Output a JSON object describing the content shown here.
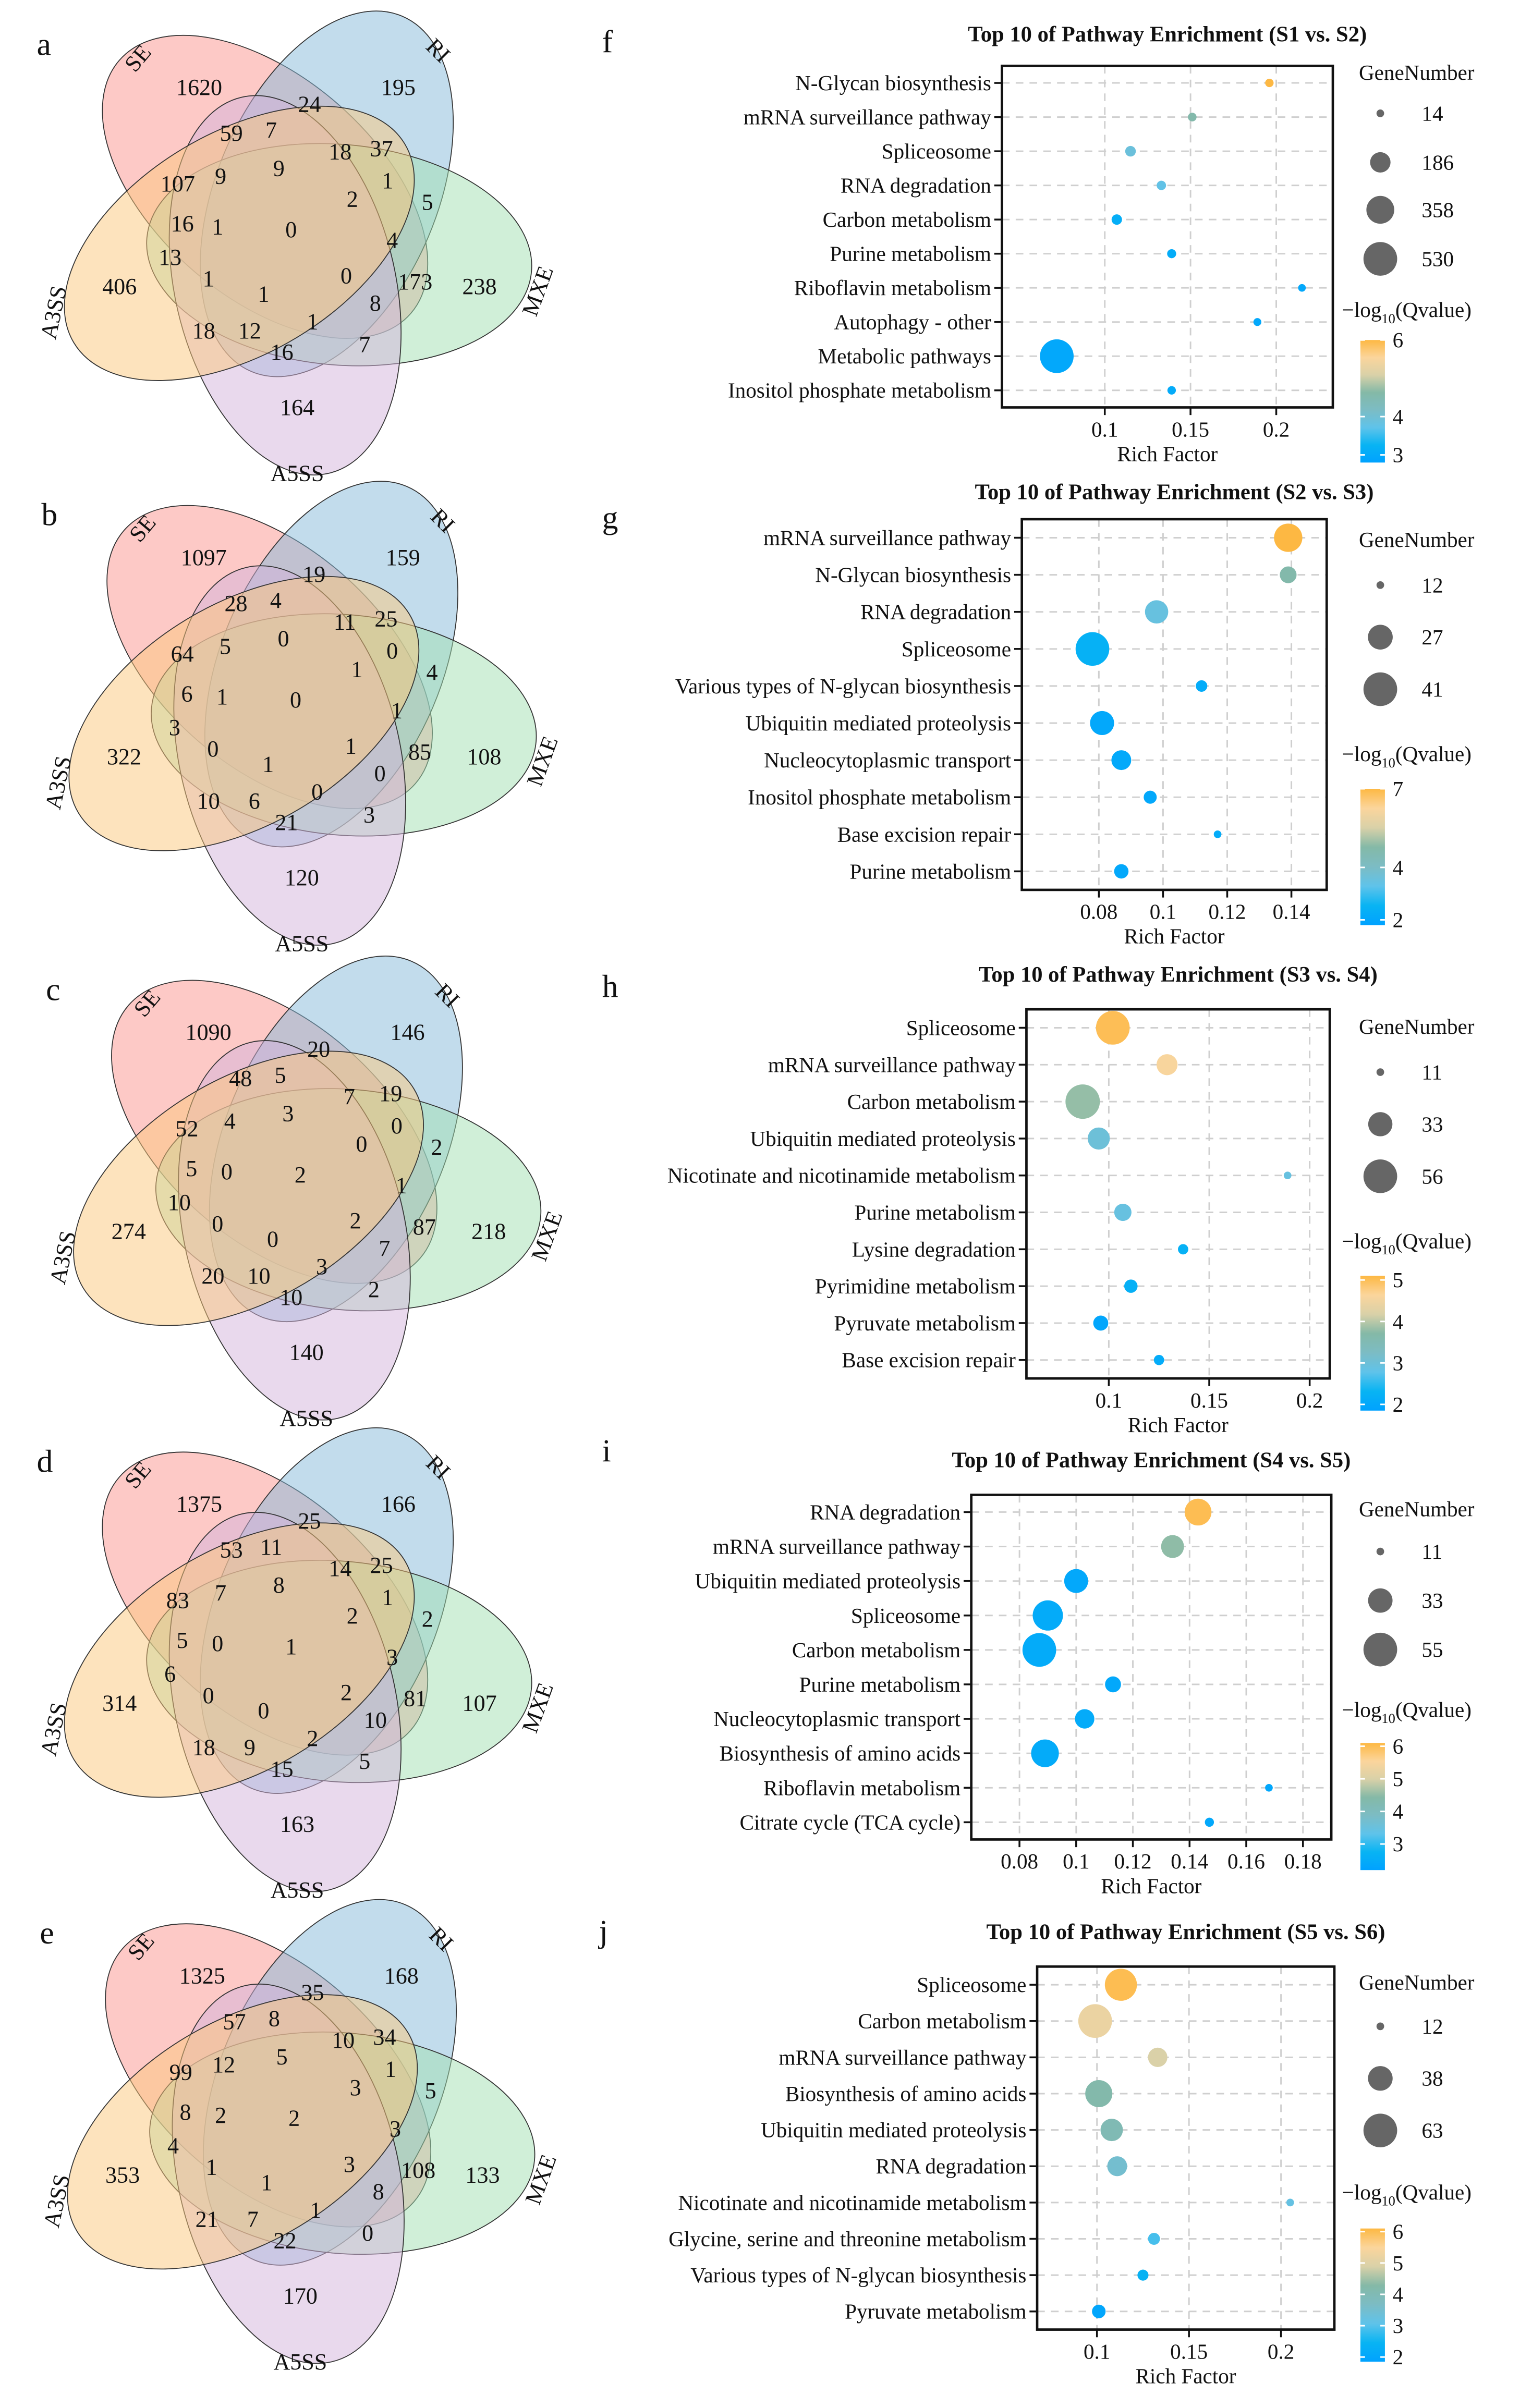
{
  "venn": [
    {
      "panel": "a",
      "sets": [
        "SE",
        "RI",
        "MXE",
        "A5SS",
        "A3SS"
      ],
      "values": [
        1620,
        195,
        238,
        164,
        406,
        24,
        59,
        7,
        18,
        37,
        107,
        9,
        9,
        2,
        1,
        5,
        16,
        1,
        0,
        4,
        13,
        1,
        1,
        0,
        173,
        8,
        18,
        12,
        1,
        7,
        16
      ]
    },
    {
      "panel": "b",
      "sets": [
        "SE",
        "RI",
        "MXE",
        "A5SS",
        "A3SS"
      ],
      "values": [
        1097,
        159,
        108,
        120,
        322,
        19,
        28,
        4,
        11,
        25,
        64,
        5,
        0,
        1,
        0,
        4,
        6,
        1,
        0,
        1,
        3,
        0,
        1,
        1,
        85,
        0,
        10,
        6,
        0,
        3,
        21
      ]
    },
    {
      "panel": "c",
      "sets": [
        "SE",
        "RI",
        "MXE",
        "A5SS",
        "A3SS"
      ],
      "values": [
        1090,
        146,
        218,
        140,
        274,
        20,
        48,
        5,
        7,
        19,
        52,
        4,
        3,
        0,
        0,
        2,
        5,
        0,
        2,
        1,
        10,
        0,
        0,
        2,
        87,
        7,
        20,
        10,
        3,
        2,
        10
      ]
    },
    {
      "panel": "d",
      "sets": [
        "SE",
        "RI",
        "MXE",
        "A5SS",
        "A3SS"
      ],
      "values": [
        1375,
        166,
        107,
        163,
        314,
        25,
        53,
        11,
        14,
        25,
        83,
        7,
        8,
        2,
        1,
        2,
        5,
        0,
        1,
        3,
        6,
        0,
        0,
        2,
        81,
        10,
        18,
        9,
        2,
        5,
        15
      ]
    },
    {
      "panel": "e",
      "sets": [
        "SE",
        "RI",
        "MXE",
        "A5SS",
        "A3SS"
      ],
      "values": [
        1325,
        168,
        133,
        170,
        353,
        35,
        57,
        8,
        10,
        34,
        99,
        12,
        5,
        3,
        1,
        5,
        8,
        2,
        2,
        3,
        4,
        1,
        1,
        3,
        108,
        8,
        21,
        7,
        1,
        0,
        22
      ]
    }
  ],
  "venn_colors": {
    "SE": "#fb938d",
    "RI": "#85b9d9",
    "MXE": "#a1dfb1",
    "A5SS": "#d3b3db",
    "A3SS": "#fbc77b"
  },
  "colorscale": [
    "#00a2ff",
    "#08b4f3",
    "#5fc3ea",
    "#7cbcc4",
    "#84b9a7",
    "#d9d1a8",
    "#fbd59c",
    "#fdb843"
  ],
  "chart_data": [
    {
      "panel": "f",
      "type": "scatter",
      "title": "Top 10 of Pathway Enrichment (S1 vs. S2)",
      "xlabel": "Rich Factor",
      "ylabel": "",
      "xlim": [
        0.04,
        0.233
      ],
      "xticks": [
        "0.1",
        "0.15",
        "0.2"
      ],
      "grid": true,
      "pathways": [
        "N-Glycan biosynthesis",
        "mRNA surveillance pathway",
        "Spliceosome",
        "RNA degradation",
        "Carbon metabolism",
        "Purine metabolism",
        "Riboflavin metabolism",
        "Autophagy - other",
        "Metabolic pathways",
        "Inositol phosphate metabolism"
      ],
      "rich_factor": [
        0.196,
        0.151,
        0.115,
        0.133,
        0.107,
        0.139,
        0.215,
        0.189,
        0.072,
        0.139
      ],
      "gene_number": [
        20,
        22,
        40,
        28,
        38,
        25,
        14,
        16,
        530,
        20
      ],
      "neg_log10_qvalue": [
        6.0,
        4.56,
        3.9,
        3.76,
        3.1,
        3.05,
        2.95,
        2.95,
        2.95,
        3.02
      ],
      "size_legend": {
        "title": "GeneNumber",
        "breaks": [
          14,
          186,
          358,
          530
        ]
      },
      "color_legend": {
        "title_parts": [
          "−log",
          "10",
          "(Qvalue)"
        ],
        "range": [
          2.8,
          6.0
        ],
        "ticks": [
          6,
          4,
          3
        ]
      },
      "legend_position": "right"
    },
    {
      "panel": "g",
      "type": "scatter",
      "title": "Top 10 of Pathway Enrichment (S2 vs. S3)",
      "xlabel": "Rich Factor",
      "ylabel": "",
      "xlim": [
        0.056,
        0.151
      ],
      "xticks": [
        "0.08",
        "0.1",
        "0.12",
        "0.14"
      ],
      "grid": true,
      "pathways": [
        "mRNA surveillance pathway",
        "N-Glycan biosynthesis",
        "RNA degradation",
        "Spliceosome",
        "Various types of N-glycan biosynthesis",
        "Ubiquitin mediated proteolysis",
        "Nucleocytoplasmic transport",
        "Inositol phosphate metabolism",
        "Base excision repair",
        "Purine metabolism"
      ],
      "rich_factor": [
        0.139,
        0.139,
        0.098,
        0.078,
        0.112,
        0.081,
        0.087,
        0.096,
        0.117,
        0.087
      ],
      "gene_number": [
        32,
        18,
        25,
        41,
        14,
        26,
        21,
        15,
        12,
        16
      ],
      "neg_log10_qvalue": [
        7.0,
        4.66,
        3.5,
        2.4,
        2.2,
        2.06,
        2.1,
        2.06,
        2.2,
        2.06
      ],
      "size_legend": {
        "title": "GeneNumber",
        "breaks": [
          12,
          27,
          41
        ]
      },
      "color_legend": {
        "title_parts": [
          "−log",
          "10",
          "(Qvalue)"
        ],
        "range": [
          1.8,
          7.0
        ],
        "ticks": [
          7,
          4,
          2
        ]
      },
      "legend_position": "right"
    },
    {
      "panel": "h",
      "type": "scatter",
      "title": "Top 10 of Pathway Enrichment (S3 vs. S4)",
      "xlabel": "Rich Factor",
      "ylabel": "",
      "xlim": [
        0.059,
        0.21
      ],
      "xticks": [
        "0.1",
        "0.15",
        "0.2"
      ],
      "grid": true,
      "pathways": [
        "Spliceosome",
        "mRNA surveillance pathway",
        "Carbon metabolism",
        "Ubiquitin mediated proteolysis",
        "Nicotinate and nicotinamide metabolism",
        "Purine metabolism",
        "Lysine degradation",
        "Pyrimidine metabolism",
        "Pyruvate metabolism",
        "Base excision repair"
      ],
      "rich_factor": [
        0.102,
        0.129,
        0.087,
        0.095,
        0.189,
        0.107,
        0.137,
        0.111,
        0.096,
        0.125
      ],
      "gene_number": [
        56,
        27,
        58,
        29,
        11,
        21,
        13,
        16,
        18,
        13
      ],
      "neg_log10_qvalue": [
        5.0,
        4.6,
        3.8,
        3.0,
        2.9,
        2.9,
        2.24,
        2.2,
        1.95,
        2.1
      ],
      "size_legend": {
        "title": "GeneNumber",
        "breaks": [
          11,
          33,
          56
        ]
      },
      "color_legend": {
        "title_parts": [
          "−log",
          "10",
          "(Qvalue)"
        ],
        "range": [
          1.85,
          5.1
        ],
        "ticks": [
          5,
          4,
          3,
          2
        ]
      },
      "legend_position": "right"
    },
    {
      "panel": "i",
      "type": "scatter",
      "title": "Top 10 of Pathway Enrichment (S4 vs. S5)",
      "xlabel": "Rich Factor",
      "ylabel": "",
      "xlim": [
        0.063,
        0.19
      ],
      "xticks": [
        "0.08",
        "0.1",
        "0.12",
        "0.14",
        "0.16",
        "0.18"
      ],
      "grid": true,
      "pathways": [
        "RNA degradation",
        "mRNA surveillance pathway",
        "Ubiquitin mediated proteolysis",
        "Spliceosome",
        "Carbon metabolism",
        "Purine metabolism",
        "Nucleocytoplasmic transport",
        "Biosynthesis of amino acids",
        "Riboflavin metabolism",
        "Citrate cycle (TCA cycle)"
      ],
      "rich_factor": [
        0.143,
        0.134,
        0.1,
        0.09,
        0.087,
        0.113,
        0.103,
        0.089,
        0.168,
        0.147
      ],
      "gene_number": [
        38,
        30,
        32,
        46,
        55,
        19,
        24,
        40,
        11,
        12
      ],
      "neg_log10_qvalue": [
        6.0,
        4.5,
        2.4,
        2.47,
        2.47,
        2.4,
        2.47,
        2.47,
        2.36,
        2.4
      ],
      "size_legend": {
        "title": "GeneNumber",
        "breaks": [
          11,
          33,
          55
        ]
      },
      "color_legend": {
        "title_parts": [
          "−log",
          "10",
          "(Qvalue)"
        ],
        "range": [
          2.2,
          6.1
        ],
        "ticks": [
          6,
          5,
          4,
          3
        ]
      },
      "legend_position": "right"
    },
    {
      "panel": "j",
      "type": "scatter",
      "title": "Top 10 of Pathway Enrichment (S5 vs. S6)",
      "xlabel": "Rich Factor",
      "ylabel": "",
      "xlim": [
        0.0675,
        0.229
      ],
      "xticks": [
        "0.1",
        "0.15",
        "0.2"
      ],
      "grid": true,
      "pathways": [
        "Spliceosome",
        "Carbon metabolism",
        "mRNA surveillance pathway",
        "Biosynthesis of amino acids",
        "Ubiquitin mediated proteolysis",
        "RNA degradation",
        "Nicotinate and nicotinamide metabolism",
        "Glycine, serine and threonine metabolism",
        "Various types of N-glycan biosynthesis",
        "Pyruvate metabolism"
      ],
      "rich_factor": [
        0.113,
        0.099,
        0.133,
        0.101,
        0.108,
        0.111,
        0.205,
        0.131,
        0.125,
        0.101
      ],
      "gene_number": [
        58,
        63,
        27,
        44,
        33,
        28,
        12,
        16,
        15,
        18
      ],
      "neg_log10_qvalue": [
        6.0,
        5.2,
        4.9,
        4.2,
        4.0,
        3.5,
        3.2,
        2.9,
        2.4,
        2.0
      ],
      "size_legend": {
        "title": "GeneNumber",
        "breaks": [
          12,
          38,
          63
        ]
      },
      "color_legend": {
        "title_parts": [
          "−log",
          "10",
          "(Qvalue)"
        ],
        "range": [
          1.85,
          6.1
        ],
        "ticks": [
          6,
          5,
          4,
          3,
          2
        ]
      },
      "legend_position": "right"
    }
  ]
}
